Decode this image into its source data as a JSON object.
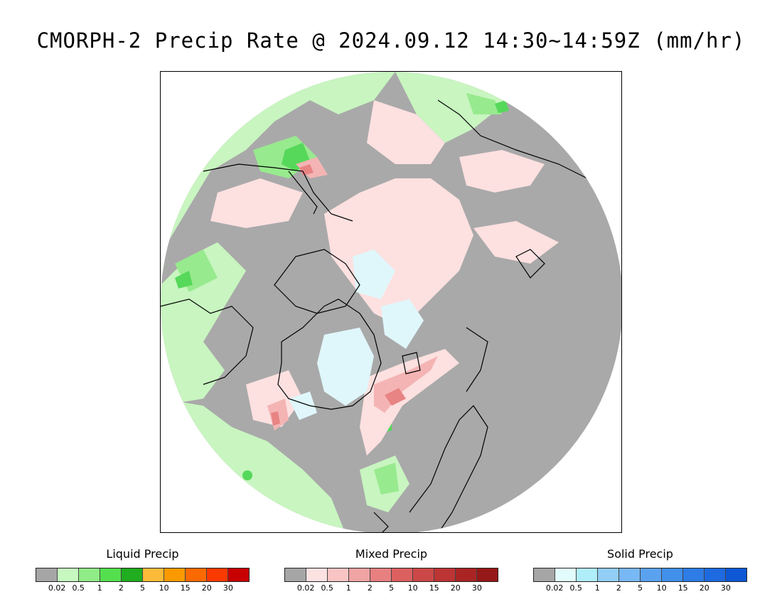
{
  "title": "CMORPH-2 Precip Rate @ 2024.09.12 14:30~14:59Z (mm/hr)",
  "map": {
    "projection": "polar-stereographic",
    "region": "Northern Hemisphere",
    "colors": {
      "no_precip": "#a9a9a9",
      "liquid_light": "#c8f5c0",
      "liquid_mid": "#98ea8e",
      "liquid_green": "#56d85a",
      "mixed_light": "#fde0e0",
      "mixed_mid": "#f4b4b4",
      "mixed_red": "#e88484",
      "solid_light": "#dff7fb",
      "outline": "#000000"
    }
  },
  "legends": [
    {
      "title": "Liquid Precip",
      "colors": [
        "#a6a6a6",
        "#c6f8c0",
        "#90ec86",
        "#54e04e",
        "#20ad20",
        "#fbbb38",
        "#fb9a00",
        "#fb6a00",
        "#fb3a00",
        "#c80000"
      ],
      "ticks": [
        "0.02",
        "0.5",
        "1",
        "2",
        "5",
        "10",
        "15",
        "20",
        "30"
      ]
    },
    {
      "title": "Mixed Precip",
      "colors": [
        "#a6a6a6",
        "#fde2e2",
        "#f9c4c4",
        "#f0a4a4",
        "#e88080",
        "#dc6060",
        "#cc4848",
        "#bc3434",
        "#aa2424",
        "#961818"
      ],
      "ticks": [
        "0.02",
        "0.5",
        "1",
        "2",
        "5",
        "10",
        "15",
        "20",
        "30"
      ]
    },
    {
      "title": "Solid Precip",
      "colors": [
        "#a6a6a6",
        "#e2fcfe",
        "#b0eefa",
        "#92cef6",
        "#78b8f4",
        "#5aa2f0",
        "#4090ec",
        "#2e7ce6",
        "#1e6ae0",
        "#0e58d6"
      ],
      "ticks": [
        "0.02",
        "0.5",
        "1",
        "2",
        "5",
        "10",
        "15",
        "20",
        "30"
      ]
    }
  ]
}
